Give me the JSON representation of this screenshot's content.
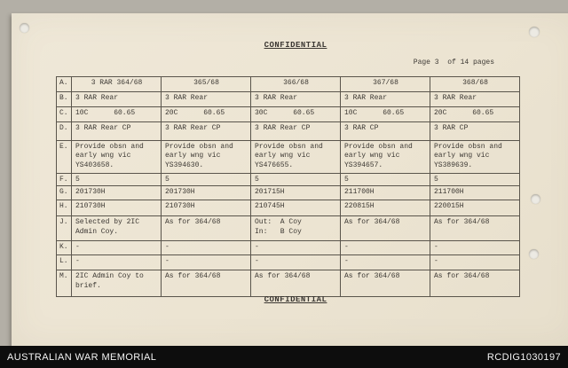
{
  "document": {
    "classification_top": "CONFIDENTIAL",
    "classification_bottom": "CONFIDENTIAL",
    "page_label": "Page 3  of 14 pages"
  },
  "table": {
    "rows": [
      {
        "label": "A.",
        "cells": [
          "3 RAR 364/68",
          "365/68",
          "366/68",
          "367/68",
          "368/68"
        ]
      },
      {
        "label": "B.",
        "cells": [
          "3 RAR Rear",
          "3 RAR Rear",
          "3 RAR Rear",
          "3 RAR Rear",
          "3 RAR Rear"
        ]
      },
      {
        "label": "C.",
        "cells": [
          "10C      60.65",
          "20C      60.65",
          "30C      60.65",
          "10C      60.65",
          "20C      60.65"
        ]
      },
      {
        "label": "D.",
        "cells": [
          "3 RAR Rear CP",
          "3 RAR Rear CP",
          "3 RAR Rear CP",
          "3 RAR CP",
          "3 RAR CP"
        ]
      },
      {
        "label": "E.",
        "cells": [
          "Provide obsn and\nearly wng vic\nYS403658.",
          "Provide obsn and\nearly wng vic\nYS394630.",
          "Provide obsn and\nearly wng vic\nYS476655.",
          "Provide obsn and\nearly wng vic\nYS394657.",
          "Provide obsn and\nearly wng vic\nYS389639."
        ]
      },
      {
        "label": "F.",
        "cells": [
          "5",
          "5",
          "5",
          "5",
          "5"
        ]
      },
      {
        "label": "G.",
        "cells": [
          "201730H",
          "201730H",
          "201715H",
          "211700H",
          "211700H"
        ]
      },
      {
        "label": "H.",
        "cells": [
          "210730H",
          "210730H",
          "210745H",
          "220815H",
          "220015H"
        ]
      },
      {
        "label": "J.",
        "cells": [
          "Selected by 2IC\nAdmin Coy.",
          "As for 364/68",
          "Out:  A Coy\nIn:   B Coy",
          "As for 364/68",
          "As for 364/68"
        ]
      },
      {
        "label": "K.",
        "cells": [
          "-",
          "-",
          "-",
          "-",
          "-"
        ]
      },
      {
        "label": "L.",
        "cells": [
          "-",
          "-",
          "-",
          "-",
          "-"
        ]
      },
      {
        "label": "M.",
        "cells": [
          "2IC Admin Coy to\nbrief.",
          "As for 364/68",
          "As for 364/68",
          "As for 364/68",
          "As for 364/68"
        ]
      }
    ]
  },
  "footer": {
    "left": "AUSTRALIAN WAR MEMORIAL",
    "right": "RCDIG1030197"
  }
}
